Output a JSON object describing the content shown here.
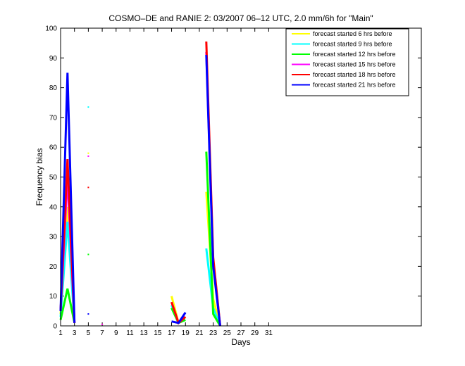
{
  "chart_data": {
    "type": "line",
    "title": "COSMO–DE and RANIE 2: 03/2007 06–12 UTC, 2.0 mm/6h for \"Main\"",
    "xlabel": "Days",
    "ylabel": "Frequency bias",
    "xlim": [
      1,
      53
    ],
    "ylim": [
      0,
      100
    ],
    "xticks": [
      1,
      3,
      5,
      7,
      9,
      11,
      13,
      15,
      17,
      19,
      21,
      23,
      25,
      27,
      29,
      31
    ],
    "yticks": [
      0,
      10,
      20,
      30,
      40,
      50,
      60,
      70,
      80,
      90,
      100
    ],
    "legend_position": "top-right",
    "series": [
      {
        "name": "forecast started 6 hrs before",
        "color": "#ffff00",
        "segments": [
          [
            [
              1,
              4
            ],
            [
              2,
              40
            ],
            [
              3,
              1
            ]
          ],
          [
            [
              17,
              10
            ],
            [
              18,
              1
            ],
            [
              19,
              3
            ]
          ],
          [
            [
              22,
              45
            ],
            [
              23,
              9
            ],
            [
              24,
              0
            ]
          ]
        ],
        "points": [
          [
            5,
            58
          ],
          [
            7,
            0.5
          ]
        ]
      },
      {
        "name": "forecast started 9 hrs before",
        "color": "#00ffff",
        "segments": [
          [
            [
              1,
              3
            ],
            [
              2,
              35
            ],
            [
              3,
              1
            ]
          ],
          [
            [
              17,
              7
            ],
            [
              18,
              1
            ],
            [
              19,
              3
            ]
          ],
          [
            [
              22,
              26
            ],
            [
              23,
              6
            ],
            [
              24,
              0
            ]
          ]
        ],
        "points": [
          [
            5,
            73.5
          ]
        ]
      },
      {
        "name": "forecast started 12 hrs before",
        "color": "#00ff00",
        "segments": [
          [
            [
              1,
              2
            ],
            [
              2,
              12.5
            ],
            [
              3,
              1
            ]
          ],
          [
            [
              17,
              6
            ],
            [
              18,
              1
            ],
            [
              19,
              2
            ]
          ],
          [
            [
              22,
              58.5
            ],
            [
              23,
              4
            ],
            [
              24,
              0
            ]
          ]
        ],
        "points": [
          [
            5,
            24
          ]
        ]
      },
      {
        "name": "forecast started 15 hrs before",
        "color": "#ff00ff",
        "segments": [
          [
            [
              1,
              5
            ],
            [
              2,
              50
            ],
            [
              3,
              1
            ]
          ],
          [
            [
              17,
              8
            ],
            [
              18,
              1
            ],
            [
              19,
              3
            ]
          ],
          [
            [
              22,
              92
            ],
            [
              23,
              22
            ],
            [
              24,
              0
            ]
          ]
        ],
        "points": [
          [
            5,
            57
          ],
          [
            7,
            0.5
          ]
        ]
      },
      {
        "name": "forecast started 18 hrs before",
        "color": "#ff0000",
        "segments": [
          [
            [
              1,
              5
            ],
            [
              2,
              56
            ],
            [
              3,
              1
            ]
          ],
          [
            [
              17,
              8
            ],
            [
              18,
              1
            ],
            [
              19,
              3
            ]
          ],
          [
            [
              22,
              95.5
            ],
            [
              23,
              23
            ],
            [
              24,
              0
            ]
          ]
        ],
        "points": [
          [
            5,
            46.5
          ]
        ]
      },
      {
        "name": "forecast started 21 hrs before",
        "color": "#0000ff",
        "segments": [
          [
            [
              1,
              5
            ],
            [
              2,
              85
            ],
            [
              3,
              1
            ]
          ],
          [
            [
              17,
              1.5
            ],
            [
              18,
              1
            ],
            [
              19,
              4.5
            ]
          ],
          [
            [
              22,
              91
            ],
            [
              23,
              20
            ],
            [
              24,
              0
            ]
          ]
        ],
        "points": [
          [
            5,
            4
          ]
        ]
      }
    ]
  }
}
